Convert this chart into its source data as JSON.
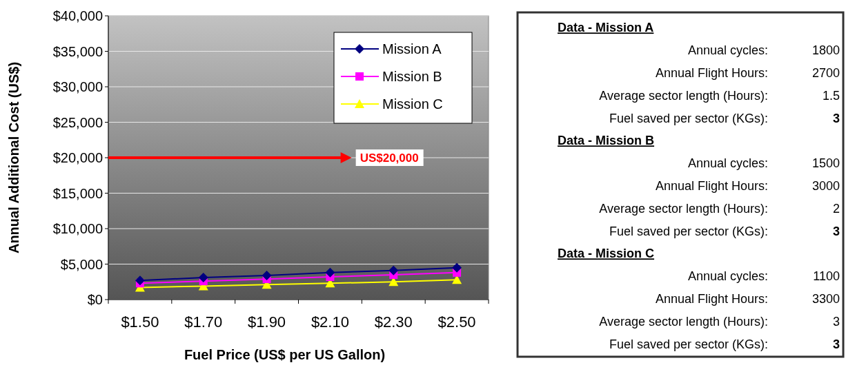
{
  "chart_data": [
    {
      "type": "line",
      "xlabel": "Fuel Price (US$ per US Gallon)",
      "ylabel": "Annual Additional Cost (US$)",
      "categories": [
        "$1.50",
        "$1.70",
        "$1.90",
        "$2.10",
        "$2.30",
        "$2.50"
      ],
      "series": [
        {
          "name": "Mission A",
          "color": "#000080",
          "marker": "diamond",
          "values": [
            2700,
            3100,
            3400,
            3800,
            4100,
            4500
          ]
        },
        {
          "name": "Mission B",
          "color": "#ff00ff",
          "marker": "square",
          "values": [
            2300,
            2600,
            2900,
            3200,
            3500,
            3800
          ]
        },
        {
          "name": "Mission C",
          "color": "#ffff00",
          "marker": "triangle",
          "values": [
            1700,
            1900,
            2100,
            2300,
            2500,
            2800
          ]
        }
      ],
      "ylim": [
        0,
        40000
      ],
      "yticks": [
        {
          "value": 0,
          "label": "$0"
        },
        {
          "value": 5000,
          "label": "$5,000"
        },
        {
          "value": 10000,
          "label": "$10,000"
        },
        {
          "value": 15000,
          "label": "$15,000"
        },
        {
          "value": 20000,
          "label": "$20,000"
        },
        {
          "value": 25000,
          "label": "$25,000"
        },
        {
          "value": 30000,
          "label": "$30,000"
        },
        {
          "value": 35000,
          "label": "$35,000"
        },
        {
          "value": 40000,
          "label": "$40,000"
        }
      ],
      "grid": "y",
      "legend": "top right",
      "ref_lines": [
        {
          "axis": "y",
          "value": 20000,
          "label": "US$20,000",
          "color": "#ff0000"
        }
      ]
    },
    {
      "type": "other",
      "annotations": [
        "Data - Mission A",
        "Annual cycles:",
        "1800",
        "Annual Flight Hours:",
        "2700",
        "Average sector length (Hours):",
        "1.5",
        "Fuel saved per sector (KGs):",
        "3",
        "Data - Mission B",
        "Annual cycles:",
        "1500",
        "Annual Flight Hours:",
        "3000",
        "Average sector length (Hours):",
        "2",
        "Fuel saved per sector (KGs):",
        "3",
        "Data - Mission C",
        "Annual cycles:",
        "1100",
        "Annual Flight Hours:",
        "3300",
        "Average sector length (Hours):",
        "3",
        "Fuel saved per sector (KGs):",
        "3"
      ]
    }
  ]
}
